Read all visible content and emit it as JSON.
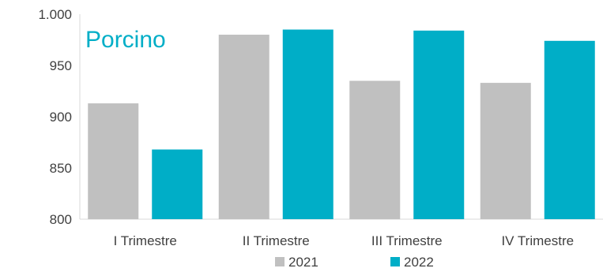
{
  "chart_data": {
    "type": "bar",
    "title": "Porcino",
    "categories": [
      "I Trimestre",
      "II Trimestre",
      "III Trimestre",
      "IV Trimestre"
    ],
    "series": [
      {
        "name": "2021",
        "color": "#c0c0c0",
        "values": [
          913,
          980,
          935,
          933
        ]
      },
      {
        "name": "2022",
        "color": "#00aec7",
        "values": [
          868,
          985,
          984,
          974
        ]
      }
    ],
    "ylim": [
      800,
      1000
    ],
    "yticks": [
      800,
      850,
      900,
      950,
      1000
    ],
    "ytick_labels": [
      "800",
      "850",
      "900",
      "950",
      "1.000"
    ],
    "grid": false,
    "legend": "bottom-center",
    "title_color": "#00aec7"
  }
}
